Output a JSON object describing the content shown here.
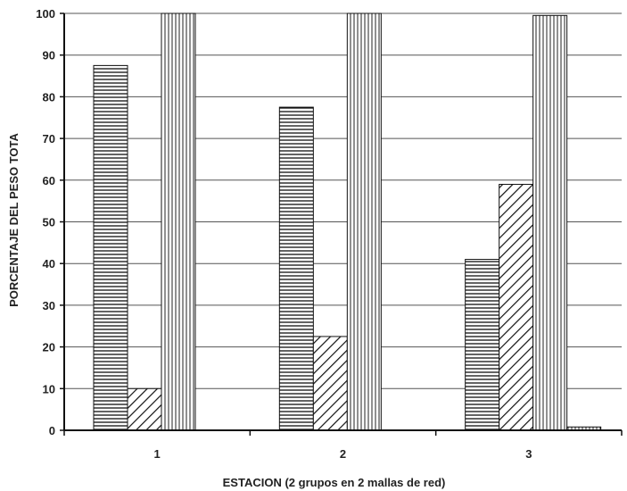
{
  "chart_data": {
    "type": "bar",
    "xlabel": "ESTACION (2 grupos en 2 mallas de red)",
    "ylabel": "PORCENTAJE DEL PESO TOTA",
    "ylim": [
      0,
      100
    ],
    "yticks": [
      "0",
      "10",
      "20",
      "30",
      "40",
      "50",
      "60",
      "70",
      "80",
      "90",
      "100"
    ],
    "categories": [
      "1",
      "2",
      "3"
    ],
    "grid": true,
    "legend": "none",
    "series": [
      {
        "pattern": "horizontal-lines",
        "values": [
          87.5,
          77.5,
          41
        ]
      },
      {
        "pattern": "diagonal-lines",
        "values": [
          10,
          22.5,
          59
        ]
      },
      {
        "pattern": "vertical-lines",
        "values": [
          100,
          100,
          99.5
        ]
      },
      {
        "pattern": "vertical-lines",
        "values": [
          0,
          0,
          0.8
        ]
      }
    ]
  }
}
